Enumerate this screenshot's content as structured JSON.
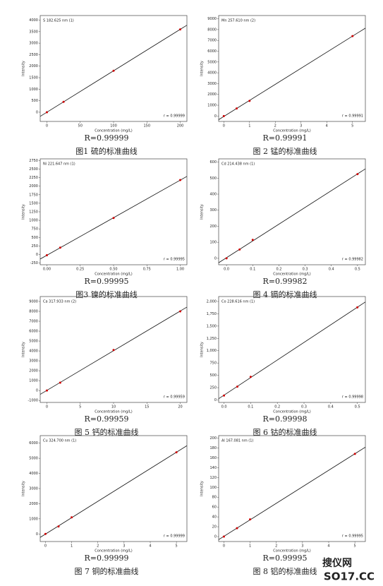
{
  "chart_data": [
    {
      "type": "scatter",
      "title": "S 182.625 nm (1)",
      "x_label": "Concentration (mg/L)",
      "y_label": "Intensity",
      "x": [
        0,
        25,
        100,
        200
      ],
      "values": [
        0,
        450,
        1800,
        3600
      ],
      "color": "#d00000",
      "xlim": [
        -10,
        210
      ],
      "ylim": [
        -400,
        4200
      ],
      "xticks": [
        0,
        50,
        100,
        150,
        200
      ],
      "yticks": [
        0,
        500,
        1000,
        1500,
        2000,
        2500,
        3000,
        3500,
        4000
      ],
      "r_text": "r = 0.99999",
      "caption_r": "R=0.99999",
      "caption": "图1 硫的标准曲线"
    },
    {
      "type": "scatter",
      "title": "Mn 257.610 nm (2)",
      "x_label": "Concentration (mg/L)",
      "y_label": "Intensity",
      "x": [
        0,
        0.5,
        1,
        5
      ],
      "values": [
        0,
        700,
        1400,
        7400
      ],
      "color": "#d00000",
      "xlim": [
        -0.2,
        5.5
      ],
      "ylim": [
        -500,
        9300
      ],
      "xticks": [
        0,
        1,
        2,
        3,
        4,
        5
      ],
      "yticks": [
        0,
        1000,
        2000,
        3000,
        4000,
        5000,
        6000,
        7000,
        8000,
        9000
      ],
      "r_text": "r = 0.99991",
      "caption_r": "R=0.99991",
      "caption": "图 2 锰的标准曲线"
    },
    {
      "type": "scatter",
      "title": "Ni 221.647 nm (1)",
      "x_label": "Concentration (mg/L)",
      "y_label": "Intensity",
      "x": [
        0,
        0.1,
        0.5,
        1
      ],
      "values": [
        -20,
        200,
        1070,
        2180
      ],
      "color": "#d00000",
      "xlim": [
        -0.05,
        1.05
      ],
      "ylim": [
        -300,
        2800
      ],
      "xticks": [
        {
          "value": 0,
          "label": "0.00"
        },
        {
          "value": 0.25,
          "label": "0.25"
        },
        {
          "value": 0.5,
          "label": "0.50"
        },
        {
          "value": 0.75,
          "label": "0.75"
        },
        {
          "value": 1,
          "label": "1.00"
        }
      ],
      "yticks": [
        -250,
        0,
        250,
        500,
        750,
        1000,
        1250,
        1500,
        1750,
        2000,
        2250,
        2500,
        2750
      ],
      "r_text": "r = 0.99995",
      "caption_r": "R=0.99995",
      "caption": "图3 镍的标准曲线"
    },
    {
      "type": "scatter",
      "title": "Cd 214.438 nm (1)",
      "x_label": "Concentration (mg/L)",
      "y_label": "Intensity",
      "x": [
        0,
        0.05,
        0.1,
        0.5
      ],
      "values": [
        0,
        55,
        115,
        525
      ],
      "color": "#d00000",
      "xlim": [
        -0.03,
        0.53
      ],
      "ylim": [
        -40,
        620
      ],
      "xticks": [
        {
          "value": 0,
          "label": "0.0"
        },
        {
          "value": 0.1,
          "label": "0.1"
        },
        {
          "value": 0.2,
          "label": "0.2"
        },
        {
          "value": 0.3,
          "label": "0.3"
        },
        {
          "value": 0.4,
          "label": "0.4"
        },
        {
          "value": 0.5,
          "label": "0.5"
        }
      ],
      "yticks": [
        0,
        100,
        200,
        300,
        400,
        500,
        600
      ],
      "r_text": "r = 0.99982",
      "caption_r": "R=0.99982",
      "caption": "图 4 镉的标准曲线"
    },
    {
      "type": "scatter",
      "title": "Ca 317.933 nm (2)",
      "x_label": "Concentration (mg/L)",
      "y_label": "Intensity",
      "x": [
        0,
        2,
        10,
        20
      ],
      "values": [
        0,
        800,
        4100,
        8000
      ],
      "color": "#d00000",
      "xlim": [
        -1,
        21
      ],
      "ylim": [
        -1200,
        9500
      ],
      "xticks": [
        0,
        5,
        10,
        15,
        20
      ],
      "yticks": [
        -1000,
        0,
        1000,
        2000,
        3000,
        4000,
        5000,
        6000,
        7000,
        8000,
        9000
      ],
      "r_text": "r = 0.99959",
      "caption_r": "R=0.99959",
      "caption": "图 5 钙的标准曲线"
    },
    {
      "type": "scatter",
      "title": "Co 228.616 nm (1)",
      "x_label": "Concentration (mg/L)",
      "y_label": "Intensity",
      "x": [
        0,
        0.05,
        0.1,
        0.5
      ],
      "values": [
        90,
        270,
        470,
        1880
      ],
      "color": "#d00000",
      "xlim": [
        -0.02,
        0.53
      ],
      "ylim": [
        -50,
        2100
      ],
      "xticks": [
        {
          "value": 0,
          "label": "0.0"
        },
        {
          "value": 0.1,
          "label": "0.1"
        },
        {
          "value": 0.2,
          "label": "0.2"
        },
        {
          "value": 0.3,
          "label": "0.3"
        },
        {
          "value": 0.4,
          "label": "0.4"
        },
        {
          "value": 0.5,
          "label": "0.5"
        }
      ],
      "yticks": [
        0,
        250,
        500,
        750,
        {
          "value": 1000,
          "label": "1,000"
        },
        {
          "value": 1250,
          "label": "1,250"
        },
        {
          "value": 1500,
          "label": "1,500"
        },
        {
          "value": 1750,
          "label": "1,750"
        },
        {
          "value": 2000,
          "label": "2,000"
        }
      ],
      "r_text": "r = 0.99998",
      "caption_r": "R=0.99998",
      "caption": "图 6 钴的标准曲线"
    },
    {
      "type": "scatter",
      "title": "Cu 324.700 nm (1)",
      "x_label": "Concentration (mg/L)",
      "y_label": "Intensity",
      "x": [
        0,
        0.5,
        1,
        5
      ],
      "values": [
        0,
        500,
        1100,
        5400
      ],
      "color": "#d00000",
      "xlim": [
        -0.2,
        5.4
      ],
      "ylim": [
        -500,
        6500
      ],
      "xticks": [
        0,
        1,
        2,
        3,
        4,
        5
      ],
      "yticks": [
        0,
        1000,
        2000,
        3000,
        4000,
        5000,
        6000
      ],
      "r_text": "r = 0.99999",
      "caption_r": "R=0.99999",
      "caption": "图 7 铜的标准曲线"
    },
    {
      "type": "scatter",
      "title": "Al 167.081 nm (1)",
      "x_label": "Concentration (mg/L)",
      "y_label": "Intensity",
      "x": [
        0,
        0.5,
        1,
        5
      ],
      "values": [
        0,
        17,
        35,
        168
      ],
      "color": "#d00000",
      "xlim": [
        -0.2,
        5.4
      ],
      "ylim": [
        -10,
        205
      ],
      "xticks": [
        0,
        1,
        2,
        3,
        4,
        5
      ],
      "yticks": [
        0,
        20,
        40,
        60,
        80,
        100,
        120,
        140,
        160,
        180,
        200
      ],
      "r_text": "r = 0.99995",
      "caption_r": "R=0.99995",
      "caption": "图 8 铝的标准曲线"
    }
  ],
  "watermark": [
    "搜仪网",
    "SO17.CC"
  ]
}
